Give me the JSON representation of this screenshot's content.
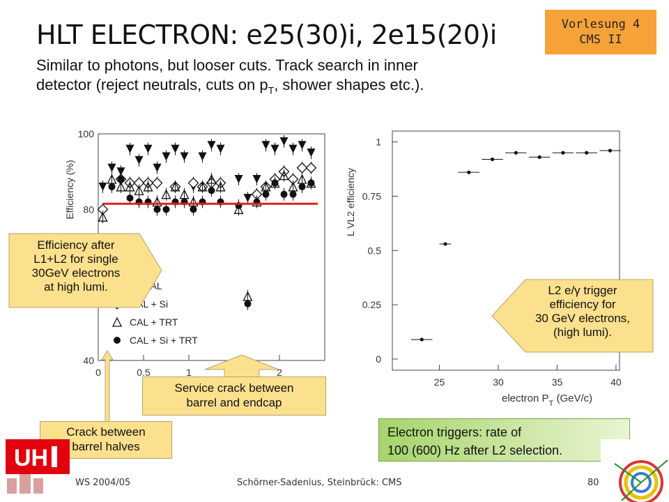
{
  "badge": {
    "line1": "Vorlesung 4",
    "line2": "CMS II"
  },
  "title": "HLT ELECTRON: e25(30)i, 2e15(20)i",
  "subtitle": {
    "line1": "Similar to photons, but looser cuts. Track search in inner",
    "line2_pre": "detector (reject neutrals, cuts on p",
    "line2_sub": "T",
    "line2_post": ", shower shapes etc.)."
  },
  "callouts": {
    "efficiency_note": [
      "Efficiency after",
      "L1+L2 for single",
      "30GeV electrons",
      "at high lumi."
    ],
    "l2_note": [
      "L2 e/γ trigger",
      "efficiency for",
      "30 GeV electrons,",
      "(high lumi)."
    ],
    "service_crack": [
      "Service crack between",
      "barrel and endcap"
    ],
    "barrel_crack": [
      "Crack between",
      "barrel halves"
    ],
    "triggers_rate": [
      "Electron triggers: rate of",
      "100 (600) Hz after L2 selection."
    ]
  },
  "footer": {
    "left": "WS 2004/05",
    "middle": "Schörner-Sadenius, Steinbrück: CMS",
    "page": "80"
  },
  "logos": {
    "uhh_text": "UH"
  },
  "colors": {
    "badge": "#f7a239",
    "callout_yellow": "#fbe08e",
    "green_box": "#a6d46a",
    "red_line": "#e02020"
  },
  "chart_data": [
    {
      "type": "scatter",
      "ylabel": "Efficiency (%)",
      "xlabel": "",
      "ylim": [
        40,
        100
      ],
      "xlim": [
        0,
        2.5
      ],
      "x_ticks": [
        "0",
        "0.5",
        "1",
        "2"
      ],
      "x_tick_values": [
        0,
        0.5,
        1,
        2
      ],
      "y_ticks": [
        "40",
        "80",
        "100"
      ],
      "y_tick_values": [
        40,
        80,
        100
      ],
      "reference_line": {
        "y": 81.5,
        "x_start": 0.05,
        "x_end": 2.5,
        "color": "#e02020"
      },
      "legend": [
        "L2 CAL",
        "CAL + Si",
        "CAL + TRT",
        "CAL + Si + TRT"
      ],
      "legend_symbols": [
        "filled-triangle-down",
        "open-diamond",
        "open-triangle-up",
        "filled-circle"
      ],
      "series": [
        {
          "name": "L2 CAL",
          "marker": "filled-triangle-down",
          "x": [
            0.05,
            0.15,
            0.25,
            0.35,
            0.45,
            0.55,
            0.65,
            0.75,
            0.85,
            0.95,
            1.05,
            1.15,
            1.25,
            1.35,
            1.55,
            1.65,
            1.75,
            1.85,
            1.95,
            2.05,
            2.15,
            2.25,
            2.35
          ],
          "y": [
            86,
            91,
            90,
            96,
            93,
            96,
            91,
            94,
            96,
            94,
            86,
            94,
            97,
            96,
            88,
            83,
            88,
            97,
            96,
            98,
            96,
            97,
            95
          ]
        },
        {
          "name": "CAL + Si",
          "marker": "open-diamond",
          "x": [
            0.05,
            0.25,
            0.35,
            0.45,
            0.55,
            0.65,
            0.85,
            1.05,
            1.15,
            1.25,
            1.35,
            1.75,
            1.85,
            1.95,
            2.05,
            2.15,
            2.25,
            2.35
          ],
          "y": [
            80,
            88,
            87,
            87,
            87,
            87,
            86,
            87,
            86,
            87,
            87,
            84,
            86,
            88,
            90,
            88,
            91,
            91
          ]
        },
        {
          "name": "CAL + TRT",
          "marker": "open-triangle-up",
          "x": [
            0.05,
            0.15,
            0.25,
            0.35,
            0.45,
            0.55,
            0.65,
            0.75,
            0.85,
            0.95,
            1.05,
            1.15,
            1.25,
            1.35,
            1.55,
            1.65,
            1.75,
            1.85,
            1.95,
            2.05,
            2.15,
            2.25,
            2.35
          ],
          "y": [
            78,
            88,
            86,
            86,
            85,
            86,
            82,
            84,
            86,
            84,
            82,
            86,
            88,
            86,
            80,
            57,
            82,
            86,
            87,
            89,
            86,
            88,
            87
          ]
        },
        {
          "name": "CAL + Si + TRT",
          "marker": "filled-circle",
          "x": [
            0.15,
            0.25,
            0.35,
            0.45,
            0.55,
            0.65,
            0.75,
            0.85,
            0.95,
            1.05,
            1.15,
            1.25,
            1.35,
            1.55,
            1.65,
            1.75,
            1.85,
            1.95,
            2.05,
            2.15,
            2.25,
            2.35
          ],
          "y": [
            86,
            88,
            83,
            82,
            82,
            80,
            80,
            82,
            82,
            80,
            82,
            85,
            82,
            81,
            55,
            82,
            84,
            87,
            84,
            84,
            86,
            87
          ]
        }
      ]
    },
    {
      "type": "scatter",
      "ylabel": "L VL2 efficiency",
      "xlabel": "electron P",
      "xlabel_sub": "T",
      "xlabel_unit": " (GeV/c)",
      "xlim": [
        21,
        40.3
      ],
      "ylim": [
        0,
        1.05
      ],
      "x_ticks": [
        "25",
        "30",
        "35",
        "40"
      ],
      "x_tick_values": [
        25,
        30,
        35,
        40
      ],
      "y_ticks": [
        "0",
        "0.25",
        "0.5",
        "0.75",
        "1"
      ],
      "y_tick_values": [
        0,
        0.25,
        0.5,
        0.75,
        1
      ],
      "series": [
        {
          "x": [
            23.5,
            25.5,
            27.5,
            29.5,
            31.5,
            33.5,
            35.5,
            37.5,
            39.5
          ],
          "y": [
            0.09,
            0.53,
            0.86,
            0.92,
            0.95,
            0.93,
            0.95,
            0.95,
            0.96
          ],
          "xerr": [
            0.9,
            0.5,
            0.9,
            0.9,
            0.9,
            0.9,
            0.9,
            0.9,
            0.9
          ]
        }
      ]
    }
  ]
}
